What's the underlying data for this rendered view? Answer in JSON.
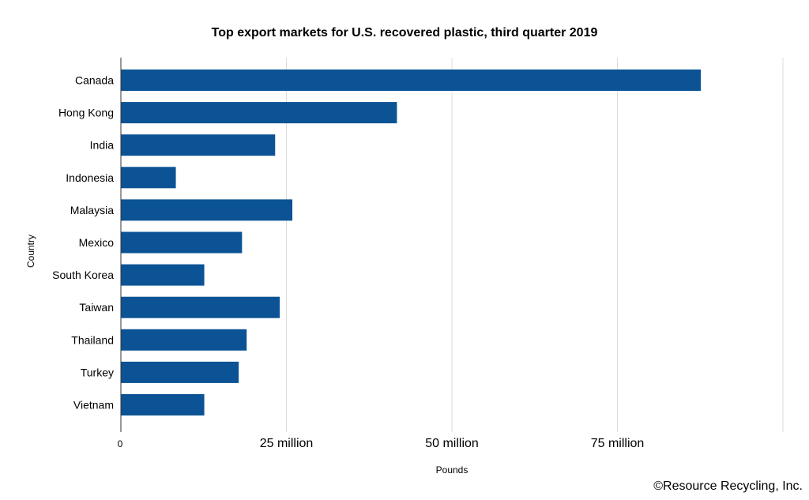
{
  "chart_data": {
    "type": "bar",
    "orientation": "horizontal",
    "title": "Top export markets for U.S. recovered plastic, third quarter 2019",
    "xlabel": "Pounds",
    "ylabel": "Country",
    "categories": [
      "Canada",
      "Hong Kong",
      "India",
      "Indonesia",
      "Malaysia",
      "Mexico",
      "South Korea",
      "Taiwan",
      "Thailand",
      "Turkey",
      "Vietnam"
    ],
    "values": [
      87600000,
      41700000,
      23300000,
      8300000,
      25900000,
      18300000,
      12600000,
      24000000,
      19000000,
      17800000,
      12600000
    ],
    "xlim": [
      0,
      100000000
    ],
    "xticks": [
      0,
      25000000,
      50000000,
      75000000
    ],
    "xtick_labels": [
      "0",
      "25 million",
      "50 million",
      "75 million"
    ],
    "bar_color": "#0b5394",
    "grid": "vertical"
  },
  "credit": "©Resource Recycling, Inc."
}
